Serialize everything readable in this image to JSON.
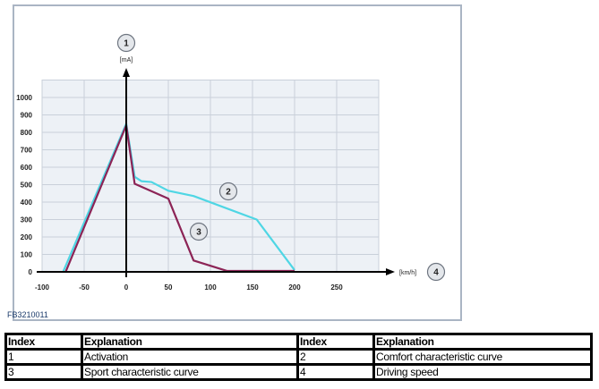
{
  "chart_data": {
    "type": "line",
    "figure_id": "FB3210011",
    "xlabel": "[km/h]",
    "ylabel": "[mA]",
    "xlim": [
      -100,
      300
    ],
    "ylim": [
      0,
      1100
    ],
    "xticks": [
      -100,
      -50,
      0,
      50,
      100,
      150,
      200,
      250
    ],
    "yticks": [
      0,
      100,
      200,
      300,
      400,
      500,
      600,
      700,
      800,
      900,
      1000
    ],
    "grid": true,
    "callouts": {
      "y_axis": "1",
      "comfort": "2",
      "sport": "3",
      "x_axis": "4"
    },
    "series": [
      {
        "key": "comfort",
        "color": "#4fd6e4",
        "points": [
          [
            -75,
            0
          ],
          [
            0,
            850
          ],
          [
            10,
            545
          ],
          [
            18,
            520
          ],
          [
            30,
            515
          ],
          [
            50,
            465
          ],
          [
            80,
            435
          ],
          [
            155,
            300
          ],
          [
            200,
            10
          ]
        ]
      },
      {
        "key": "sport",
        "color": "#8c2456",
        "points": [
          [
            -72,
            0
          ],
          [
            0,
            840
          ],
          [
            10,
            505
          ],
          [
            50,
            420
          ],
          [
            80,
            65
          ],
          [
            120,
            5
          ],
          [
            200,
            5
          ]
        ]
      }
    ]
  },
  "legend_table": {
    "headers": [
      "Index",
      "Explanation",
      "Index",
      "Explanation"
    ],
    "rows": [
      [
        "1",
        "Activation",
        "2",
        "Comfort characteristic curve"
      ],
      [
        "3",
        "Sport characteristic curve",
        "4",
        "Driving speed"
      ]
    ]
  }
}
